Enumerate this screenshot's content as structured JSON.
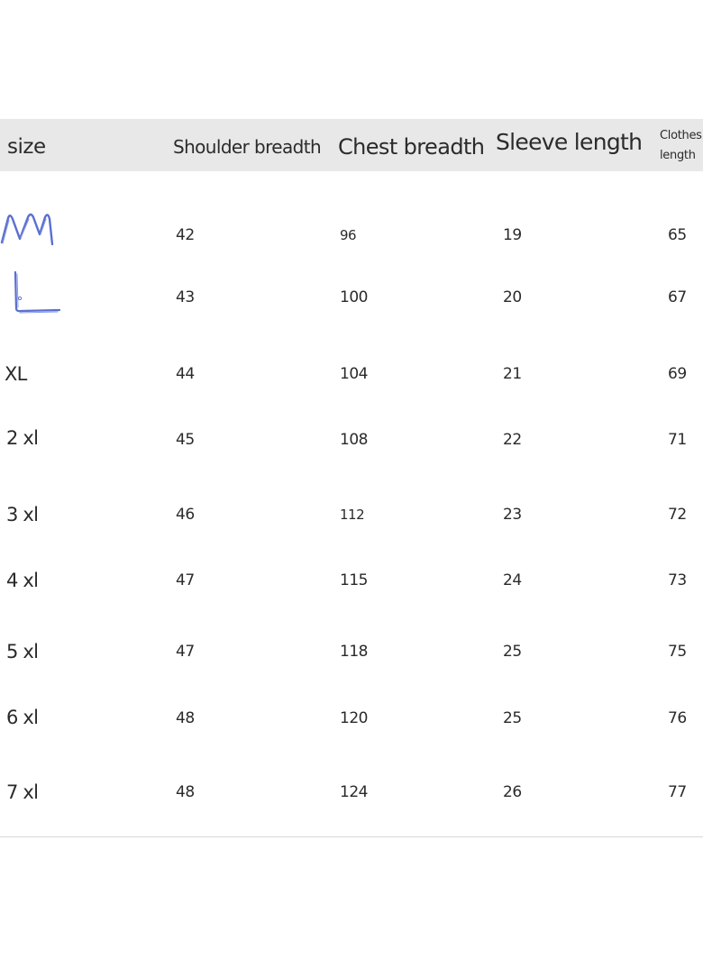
{
  "headers": {
    "size": "size",
    "shoulder": "Shoulder breadth",
    "chest": "Chest breadth",
    "sleeve": "Sleeve length",
    "clothes_length_line1": "Clothes",
    "clothes_length_line2": "length"
  },
  "rows": [
    {
      "size": "M",
      "shoulder": "42",
      "chest": "96",
      "sleeve": "19",
      "length": "65"
    },
    {
      "size": "L",
      "shoulder": "43",
      "chest": "100",
      "sleeve": "20",
      "length": "67"
    },
    {
      "size": "XL",
      "shoulder": "44",
      "chest": "104",
      "sleeve": "21",
      "length": "69"
    },
    {
      "size": "2 xl",
      "shoulder": "45",
      "chest": "108",
      "sleeve": "22",
      "length": "71"
    },
    {
      "size": "3 xl",
      "shoulder": "46",
      "chest": "112",
      "sleeve": "23",
      "length": "72"
    },
    {
      "size": "4 xl",
      "shoulder": "47",
      "chest": "115",
      "sleeve": "24",
      "length": "73"
    },
    {
      "size": "5 xl",
      "shoulder": "47",
      "chest": "118",
      "sleeve": "25",
      "length": "75"
    },
    {
      "size": "6 xl",
      "shoulder": "48",
      "chest": "120",
      "sleeve": "25",
      "length": "76"
    },
    {
      "size": "7 xl",
      "shoulder": "48",
      "chest": "124",
      "sleeve": "26",
      "length": "77"
    }
  ],
  "colors": {
    "header_background": "#e8e8e8",
    "handwritten_ink": "#5a6fd0",
    "rule": "#d8d8d8"
  }
}
